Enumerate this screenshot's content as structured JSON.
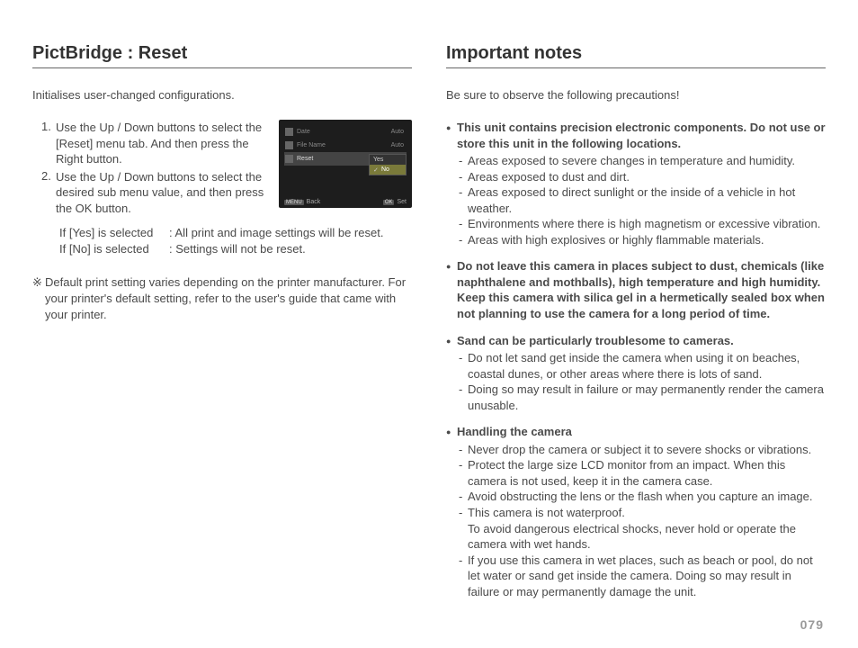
{
  "left": {
    "heading": "PictBridge : Reset",
    "intro": "Initialises user-changed configurations.",
    "steps": [
      "Use the Up / Down buttons to select the [Reset] menu tab. And then press the Right button.",
      "Use the Up / Down buttons to select the desired sub menu value, and then press the OK button."
    ],
    "explain": [
      {
        "l": "If [Yes] is selected",
        "r": ": All print and image settings will be reset."
      },
      {
        "l": "If [No] is selected",
        "r": ": Settings will not be reset."
      }
    ],
    "note": "Default print setting varies depending on the printer manufacturer. For your printer's default setting, refer to the user's guide that came with your printer.",
    "ss": {
      "rows": [
        {
          "label": "Date",
          "value": "Auto"
        },
        {
          "label": "File Name",
          "value": "Auto"
        },
        {
          "label": "Reset",
          "value": ""
        }
      ],
      "popup": [
        "Yes",
        "No"
      ],
      "back": "Back",
      "set": "Set",
      "menu": "MENU",
      "ok": "OK"
    }
  },
  "right": {
    "heading": "Important notes",
    "intro": "Be sure to observe the following precautions!",
    "bullets": [
      {
        "lead": "This unit contains precision electronic components. Do not use or store this unit in the following locations.",
        "lead_bold": true,
        "sub": [
          "Areas exposed to severe changes in temperature and humidity.",
          "Areas exposed to dust and dirt.",
          "Areas exposed to direct sunlight or the inside of a vehicle in hot weather.",
          "Environments where there is high magnetism or excessive vibration.",
          "Areas with high explosives or highly flammable materials."
        ]
      },
      {
        "lead": "Do not leave this camera in places subject to dust, chemicals (like naphthalene and mothballs), high temperature and high humidity. Keep this camera with silica gel in a hermetically sealed box when not planning to use the camera for a long period of time.",
        "lead_bold": true,
        "sub": []
      },
      {
        "lead": "Sand can be particularly troublesome to cameras.",
        "lead_bold": true,
        "sub": [
          "Do not let sand get inside the camera when using it on beaches, coastal dunes, or other areas where there is lots of sand.",
          "Doing so may result in failure or may permanently render the camera unusable."
        ]
      },
      {
        "lead": "Handling the camera",
        "lead_bold": true,
        "sub": [
          "Never drop the camera or subject it to severe shocks or vibrations.",
          "Protect  the large size LCD monitor from an impact. When this camera is not used, keep it in the camera case.",
          "Avoid obstructing the lens or the flash when you capture an image.",
          "This camera is not waterproof.\nTo avoid dangerous electrical shocks, never hold or operate the camera with wet hands.",
          "If you use this camera in wet places, such as beach or pool, do not let water or sand get inside the camera. Doing so may result in failure or may permanently damage the unit."
        ]
      }
    ]
  },
  "page": "079"
}
